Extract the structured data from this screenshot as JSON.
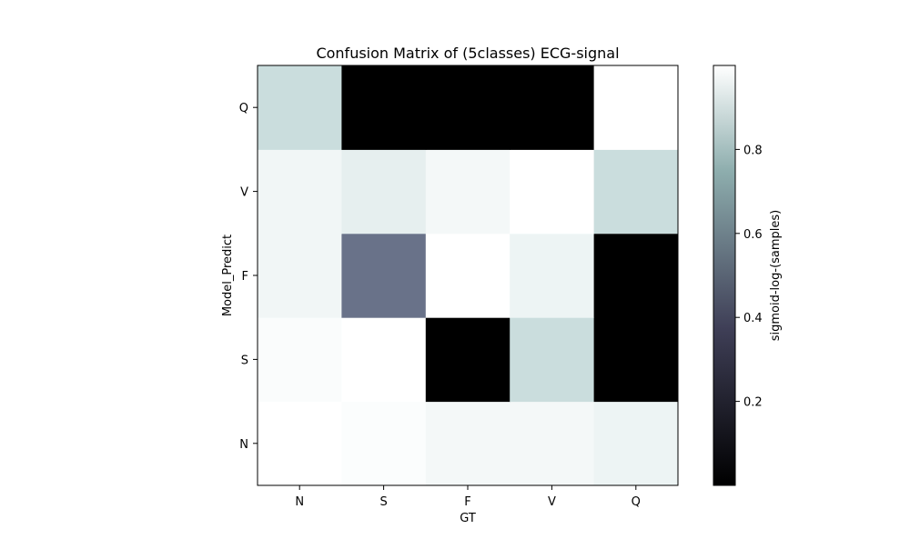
{
  "chart_data": {
    "type": "heatmap",
    "title": "Confusion Matrix of (5classes) ECG-signal",
    "xlabel": "GT",
    "ylabel": "Model_Predict",
    "x_categories": [
      "N",
      "S",
      "F",
      "V",
      "Q"
    ],
    "y_categories": [
      "N",
      "S",
      "F",
      "V",
      "Q"
    ],
    "values": [
      [
        0.999,
        0.99,
        0.97,
        0.97,
        0.95
      ],
      [
        0.985,
        0.999,
        0.0,
        0.85,
        0.0
      ],
      [
        0.96,
        0.48,
        0.999,
        0.95,
        0.0
      ],
      [
        0.96,
        0.93,
        0.97,
        0.999,
        0.85
      ],
      [
        0.85,
        0.0,
        0.0,
        0.0,
        0.999
      ]
    ],
    "colormap": "bone",
    "colorbar": {
      "label": "sigmoid-log-(samples)",
      "ticks": [
        0.2,
        0.4,
        0.6,
        0.8
      ],
      "range": [
        0.0,
        1.0
      ]
    },
    "y_order": "bottom-to-top",
    "grid": false
  }
}
